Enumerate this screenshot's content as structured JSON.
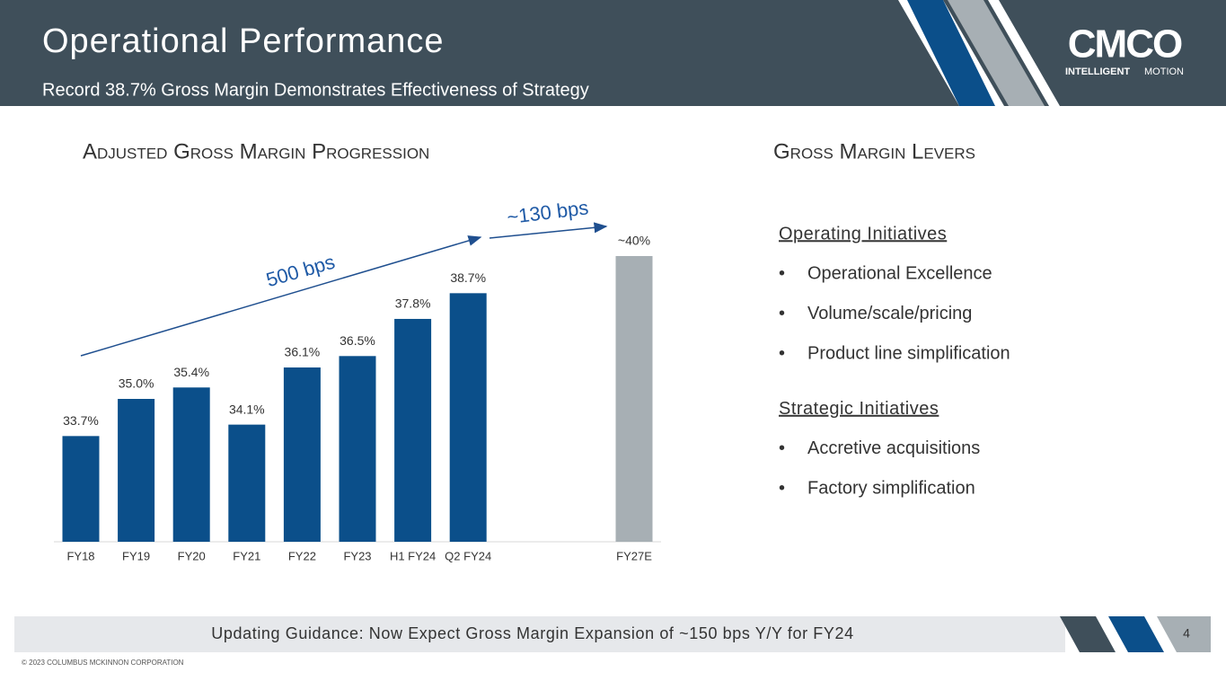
{
  "header": {
    "title": "Operational Performance",
    "subtitle": "Record 38.7% Gross Margin Demonstrates Effectiveness of Strategy",
    "logo": {
      "mark": "CMCO",
      "tagline_bold": "INTELLIGENT",
      "tagline": "MOTION"
    }
  },
  "chart_data": {
    "type": "bar",
    "title": "Adjusted Gross Margin Progression",
    "categories": [
      "FY18",
      "FY19",
      "FY20",
      "FY21",
      "FY22",
      "FY23",
      "H1 FY24",
      "Q2 FY24",
      null,
      null,
      "FY27E"
    ],
    "values": [
      33.7,
      35.0,
      35.4,
      34.1,
      36.1,
      36.5,
      37.8,
      38.7,
      null,
      null,
      40
    ],
    "value_labels": [
      "33.7%",
      "35.0%",
      "35.4%",
      "34.1%",
      "36.1%",
      "36.5%",
      "37.8%",
      "38.7%",
      null,
      null,
      "~40%"
    ],
    "colors": [
      "#0b4f8a",
      "#0b4f8a",
      "#0b4f8a",
      "#0b4f8a",
      "#0b4f8a",
      "#0b4f8a",
      "#0b4f8a",
      "#0b4f8a",
      null,
      null,
      "#a7afb4"
    ],
    "ylim": [
      30,
      41
    ],
    "annotations": [
      "500 bps",
      "~130 bps"
    ]
  },
  "levers": {
    "title": "Gross Margin Levers",
    "groups": [
      {
        "heading": "Operating Initiatives",
        "items": [
          "Operational Excellence",
          "Volume/scale/pricing",
          "Product line simplification"
        ]
      },
      {
        "heading": "Strategic Initiatives",
        "items": [
          "Accretive acquisitions",
          "Factory simplification"
        ]
      }
    ]
  },
  "footer": {
    "banner": "Updating Guidance:  Now Expect Gross Margin Expansion of ~150 bps Y/Y for FY24",
    "page": "4",
    "copyright": "© 2023 COLUMBUS MCKINNON CORPORATION"
  }
}
